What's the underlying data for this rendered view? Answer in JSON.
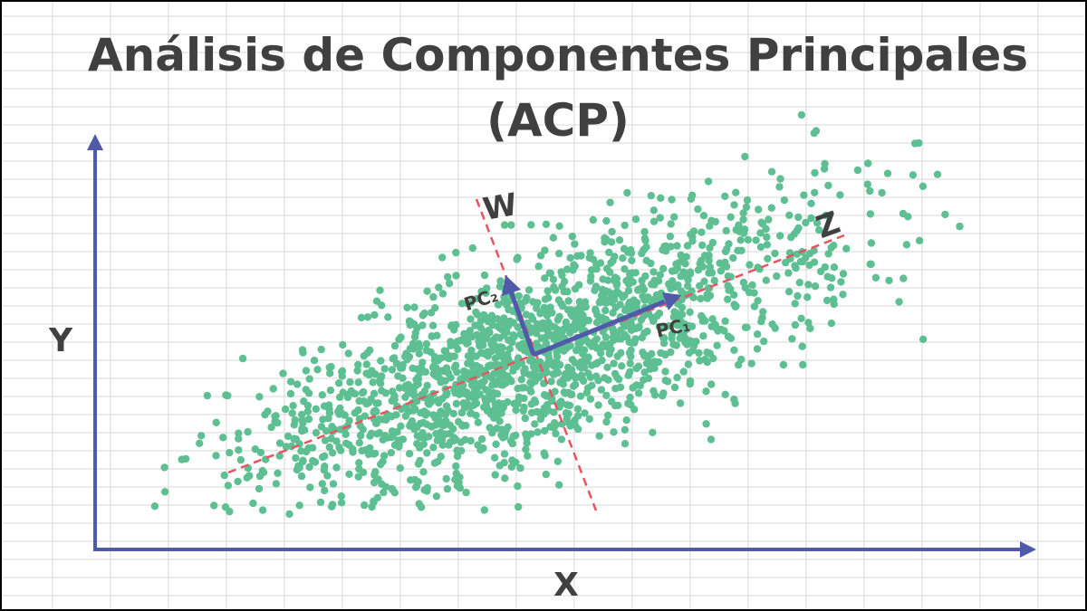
{
  "title": {
    "line1": "Análisis de Componentes Principales",
    "line2": "(ACP)"
  },
  "axes": {
    "x_label": "X",
    "y_label": "Y"
  },
  "lines": {
    "principal_axis_label": "Z",
    "secondary_axis_label": "W"
  },
  "vectors": {
    "pc1_label": "PC₁",
    "pc2_label": "PC₂"
  },
  "colors": {
    "background": "#ffffff",
    "grid": "#d9d9d9",
    "axis": "#4f5aa8",
    "points": "#5dbf92",
    "dashed_lines": "#e8545f",
    "vectors": "#4f5aa8",
    "text": "#404040",
    "border": "#000000"
  },
  "chart_data": {
    "type": "scatter",
    "description_free": true,
    "n_points": 1800,
    "correlation": "positive",
    "grid": true
  }
}
